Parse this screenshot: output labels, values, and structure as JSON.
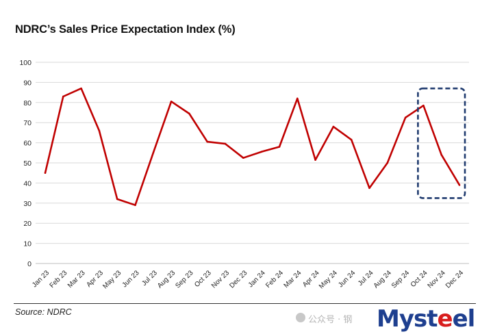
{
  "header": {
    "title": "NDRC’s Sales Price Expectation Index (%)"
  },
  "footer": {
    "source": "Source:  NDRC",
    "watermark_text": "公众号 · 钢",
    "logo_text": "Mysteel"
  },
  "colors": {
    "line": "#c00000",
    "highlight_box": "#1f3a6e",
    "grid": "#d9d9d9"
  },
  "chart_data": {
    "type": "line",
    "title": "NDRC’s Sales Price Expectation Index (%)",
    "xlabel": "",
    "ylabel": "",
    "ylim": [
      0,
      100
    ],
    "yticks": [
      0,
      10,
      20,
      30,
      40,
      50,
      60,
      70,
      80,
      90,
      100
    ],
    "grid": true,
    "categories": [
      "Jan 23",
      "Feb 23",
      "Mar 23",
      "Apr 23",
      "May 23",
      "Jun 23",
      "Jul 23",
      "Aug 23",
      "Sep 23",
      "Oct 23",
      "Nov 23",
      "Dec 23",
      "Jan 24",
      "Feb 24",
      "Mar 24",
      "Apr 24",
      "May 24",
      "Jun 24",
      "Jul 24",
      "Aug 24",
      "Sep 24",
      "Oct 24",
      "Nov 24",
      "Dec 24"
    ],
    "series": [
      {
        "values": [
          45,
          83,
          87,
          66,
          32,
          29,
          55,
          80.5,
          74.5,
          60.5,
          59.5,
          52.5,
          55.5,
          58,
          82,
          51.5,
          68,
          61.5,
          37.5,
          50,
          72.5,
          78.5,
          54,
          39
        ]
      }
    ],
    "annotations": [
      {
        "type": "dashed-box",
        "from_category": "Oct 24",
        "to_category": "Dec 24",
        "y_range": [
          32.5,
          87
        ]
      }
    ]
  }
}
